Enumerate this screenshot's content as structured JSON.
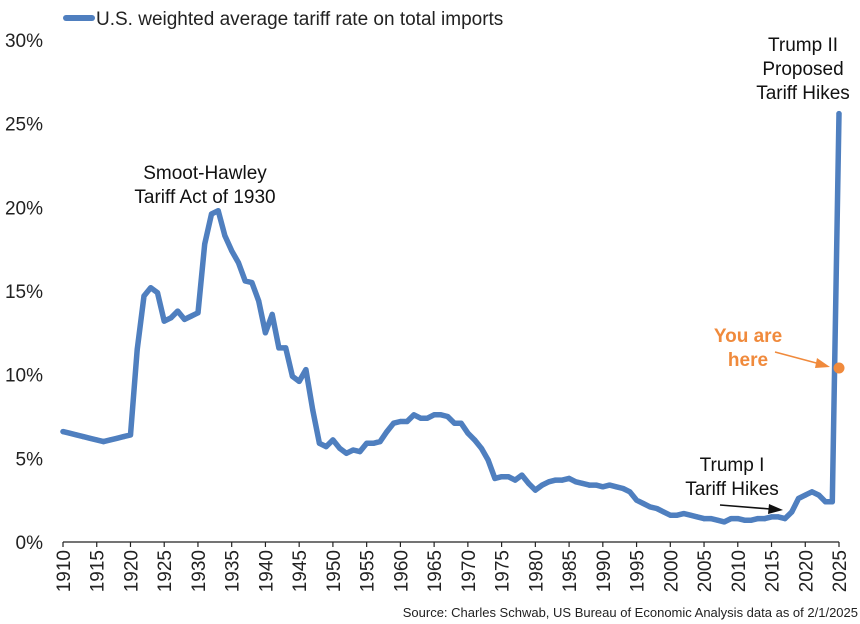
{
  "chart_data": {
    "type": "line",
    "title": "",
    "xlabel": "",
    "ylabel": "",
    "xlim": [
      1910,
      2025
    ],
    "ylim": [
      0,
      30
    ],
    "grid": false,
    "legend_position": "top-left",
    "y_ticks": [
      0,
      5,
      10,
      15,
      20,
      25,
      30
    ],
    "y_tick_labels": [
      "0%",
      "5%",
      "10%",
      "15%",
      "20%",
      "25%",
      "30%"
    ],
    "x_ticks": [
      1910,
      1915,
      1920,
      1925,
      1930,
      1935,
      1940,
      1945,
      1950,
      1955,
      1960,
      1965,
      1970,
      1975,
      1980,
      1985,
      1990,
      1995,
      2000,
      2005,
      2010,
      2015,
      2020,
      2025
    ],
    "x_tick_labels": [
      "1910",
      "1915",
      "1920",
      "1925",
      "1930",
      "1935",
      "1940",
      "1945",
      "1950",
      "1955",
      "1960",
      "1965",
      "1970",
      "1975",
      "1980",
      "1985",
      "1990",
      "1995",
      "2000",
      "2005",
      "2010",
      "2015",
      "2020",
      "2025"
    ],
    "series": [
      {
        "name": "U.S. weighted average tariff rate on total imports",
        "color": "#4f7fbf",
        "x": [
          1910,
          1911,
          1912,
          1913,
          1914,
          1915,
          1916,
          1917,
          1918,
          1919,
          1920,
          1921,
          1922,
          1923,
          1924,
          1925,
          1926,
          1927,
          1928,
          1929,
          1930,
          1931,
          1932,
          1933,
          1934,
          1935,
          1936,
          1937,
          1938,
          1939,
          1940,
          1941,
          1942,
          1943,
          1944,
          1945,
          1946,
          1947,
          1948,
          1949,
          1950,
          1951,
          1952,
          1953,
          1954,
          1955,
          1956,
          1957,
          1958,
          1959,
          1960,
          1961,
          1962,
          1963,
          1964,
          1965,
          1966,
          1967,
          1968,
          1969,
          1970,
          1971,
          1972,
          1973,
          1974,
          1975,
          1976,
          1977,
          1978,
          1979,
          1980,
          1981,
          1982,
          1983,
          1984,
          1985,
          1986,
          1987,
          1988,
          1989,
          1990,
          1991,
          1992,
          1993,
          1994,
          1995,
          1996,
          1997,
          1998,
          1999,
          2000,
          2001,
          2002,
          2003,
          2004,
          2005,
          2006,
          2007,
          2008,
          2009,
          2010,
          2011,
          2012,
          2013,
          2014,
          2015,
          2016,
          2017,
          2018,
          2019,
          2020,
          2021,
          2022,
          2023,
          2024,
          2025
        ],
        "values": [
          6.6,
          6.5,
          6.4,
          6.3,
          6.2,
          6.1,
          6.0,
          6.1,
          6.2,
          6.3,
          6.4,
          11.5,
          14.7,
          15.2,
          14.9,
          13.2,
          13.4,
          13.8,
          13.3,
          13.5,
          13.7,
          17.8,
          19.6,
          19.8,
          18.3,
          17.4,
          16.7,
          15.6,
          15.5,
          14.4,
          12.5,
          13.6,
          11.6,
          11.6,
          9.9,
          9.6,
          10.3,
          7.9,
          5.9,
          5.7,
          6.1,
          5.6,
          5.3,
          5.5,
          5.4,
          5.9,
          5.9,
          6.0,
          6.6,
          7.1,
          7.2,
          7.2,
          7.6,
          7.4,
          7.4,
          7.6,
          7.6,
          7.5,
          7.1,
          7.1,
          6.5,
          6.1,
          5.6,
          4.9,
          3.8,
          3.9,
          3.9,
          3.7,
          4.0,
          3.5,
          3.1,
          3.4,
          3.6,
          3.7,
          3.7,
          3.8,
          3.6,
          3.5,
          3.4,
          3.4,
          3.3,
          3.4,
          3.3,
          3.2,
          3.0,
          2.5,
          2.3,
          2.1,
          2.0,
          1.8,
          1.6,
          1.6,
          1.7,
          1.6,
          1.5,
          1.4,
          1.4,
          1.3,
          1.2,
          1.4,
          1.4,
          1.3,
          1.3,
          1.4,
          1.4,
          1.5,
          1.5,
          1.4,
          1.8,
          2.6,
          2.8,
          3.0,
          2.8,
          2.4,
          2.4,
          25.6
        ]
      }
    ],
    "highlight_point": {
      "x": 2025,
      "y": 10.4,
      "color": "#f08a3c"
    },
    "annotations": [
      {
        "id": "smoot",
        "lines": [
          "Smoot-Hawley",
          "Tariff Act of 1930"
        ]
      },
      {
        "id": "trump1",
        "lines": [
          "Trump I",
          "Tariff Hikes"
        ]
      },
      {
        "id": "trump2",
        "lines": [
          "Trump II",
          "Proposed",
          "Tariff Hikes"
        ]
      },
      {
        "id": "here",
        "lines": [
          "You are",
          "here"
        ]
      }
    ],
    "source": "Source: Charles Schwab, US Bureau of Economic Analysis data as of 2/1/2025"
  }
}
